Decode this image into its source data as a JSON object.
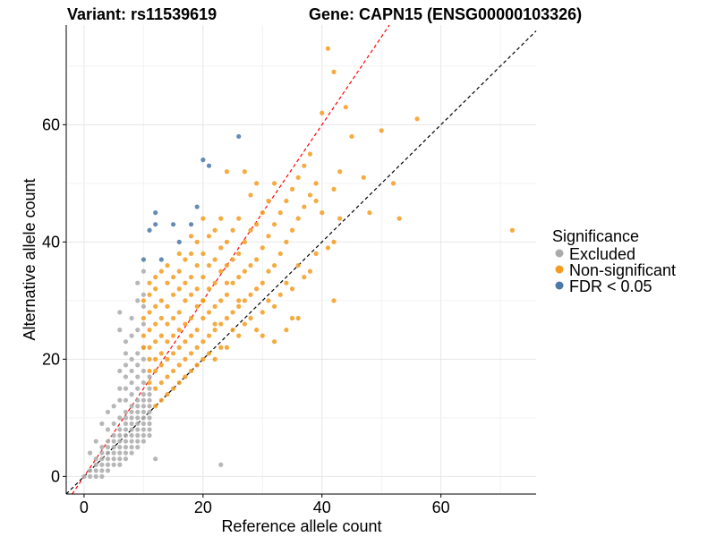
{
  "chart_data": {
    "type": "scatter",
    "title_left": "Variant: rs11539619",
    "title_right": "Gene: CAPN15 (ENSG00000103326)",
    "xlabel": "Reference allele count",
    "ylabel": "Alternative allele count",
    "xlim": [
      -3,
      76
    ],
    "ylim": [
      -3,
      77
    ],
    "xticks": [
      0,
      20,
      40,
      60
    ],
    "yticks": [
      0,
      20,
      40,
      60
    ],
    "grid": true,
    "legend": {
      "title": "Significance",
      "placement": "right",
      "entries": [
        {
          "label": "Excluded",
          "color": "#aaaaaa"
        },
        {
          "label": "Non-significant",
          "color": "#f39c1f"
        },
        {
          "label": "FDR < 0.05",
          "color": "#4a78a8"
        }
      ]
    },
    "reference_lines": [
      {
        "name": "equal-ratio",
        "slope": 1,
        "intercept": 0,
        "color": "#000000",
        "dash": true
      },
      {
        "name": "fitted-ratio",
        "slope": 1.5,
        "intercept": 0,
        "color": "#ff0000",
        "dash": true
      }
    ],
    "series": [
      {
        "name": "Excluded",
        "color": "#aaaaaa",
        "points": [
          [
            0,
            0
          ],
          [
            1,
            0
          ],
          [
            1,
            1
          ],
          [
            2,
            0
          ],
          [
            2,
            1
          ],
          [
            2,
            2
          ],
          [
            2,
            3
          ],
          [
            3,
            0
          ],
          [
            3,
            1
          ],
          [
            3,
            2
          ],
          [
            3,
            3
          ],
          [
            3,
            4
          ],
          [
            3,
            5
          ],
          [
            4,
            1
          ],
          [
            4,
            2
          ],
          [
            4,
            3
          ],
          [
            4,
            4
          ],
          [
            4,
            5
          ],
          [
            4,
            6
          ],
          [
            4,
            8
          ],
          [
            4,
            11
          ],
          [
            5,
            2
          ],
          [
            5,
            3
          ],
          [
            5,
            4
          ],
          [
            5,
            5
          ],
          [
            5,
            6
          ],
          [
            5,
            7
          ],
          [
            5,
            9
          ],
          [
            5,
            12
          ],
          [
            6,
            2
          ],
          [
            6,
            3
          ],
          [
            6,
            4
          ],
          [
            6,
            5
          ],
          [
            6,
            6
          ],
          [
            6,
            7
          ],
          [
            6,
            8
          ],
          [
            6,
            10
          ],
          [
            6,
            13
          ],
          [
            6,
            15
          ],
          [
            7,
            3
          ],
          [
            7,
            4
          ],
          [
            7,
            5
          ],
          [
            7,
            6
          ],
          [
            7,
            7
          ],
          [
            7,
            8
          ],
          [
            7,
            9
          ],
          [
            7,
            10
          ],
          [
            7,
            11
          ],
          [
            7,
            13
          ],
          [
            7,
            15
          ],
          [
            7,
            17
          ],
          [
            7,
            19
          ],
          [
            7,
            21
          ],
          [
            7,
            23
          ],
          [
            8,
            4
          ],
          [
            8,
            5
          ],
          [
            8,
            6
          ],
          [
            8,
            7
          ],
          [
            8,
            8
          ],
          [
            8,
            9
          ],
          [
            8,
            10
          ],
          [
            8,
            11
          ],
          [
            8,
            12
          ],
          [
            8,
            14
          ],
          [
            8,
            16
          ],
          [
            8,
            18
          ],
          [
            8,
            20
          ],
          [
            8,
            24
          ],
          [
            8,
            27
          ],
          [
            9,
            5
          ],
          [
            9,
            6
          ],
          [
            9,
            7
          ],
          [
            9,
            8
          ],
          [
            9,
            9
          ],
          [
            9,
            10
          ],
          [
            9,
            11
          ],
          [
            9,
            12
          ],
          [
            9,
            13
          ],
          [
            9,
            15
          ],
          [
            9,
            17
          ],
          [
            9,
            19
          ],
          [
            9,
            21
          ],
          [
            9,
            25
          ],
          [
            9,
            30
          ],
          [
            9,
            33
          ],
          [
            10,
            6
          ],
          [
            10,
            7
          ],
          [
            10,
            8
          ],
          [
            10,
            9
          ],
          [
            10,
            10
          ],
          [
            10,
            11
          ],
          [
            10,
            12
          ],
          [
            10,
            13
          ],
          [
            10,
            14
          ],
          [
            10,
            16
          ],
          [
            10,
            18
          ],
          [
            10,
            20
          ],
          [
            10,
            22
          ],
          [
            10,
            26
          ],
          [
            10,
            29
          ],
          [
            10,
            31
          ],
          [
            10,
            35
          ],
          [
            11,
            7
          ],
          [
            11,
            8
          ],
          [
            11,
            9
          ],
          [
            11,
            10
          ],
          [
            11,
            11
          ],
          [
            11,
            12
          ],
          [
            11,
            13
          ],
          [
            11,
            14
          ],
          [
            11,
            15
          ],
          [
            11,
            17
          ],
          [
            12,
            3
          ],
          [
            23,
            2
          ],
          [
            6,
            18
          ],
          [
            6,
            25
          ],
          [
            6,
            28
          ],
          [
            3,
            9
          ],
          [
            2,
            6
          ],
          [
            1,
            4
          ]
        ]
      },
      {
        "name": "Non-significant",
        "color": "#f39c1f",
        "points": [
          [
            10,
            22
          ],
          [
            10,
            24
          ],
          [
            10,
            27
          ],
          [
            10,
            30
          ],
          [
            11,
            16
          ],
          [
            11,
            18
          ],
          [
            11,
            20
          ],
          [
            11,
            22
          ],
          [
            11,
            25
          ],
          [
            11,
            28
          ],
          [
            11,
            31
          ],
          [
            11,
            33
          ],
          [
            12,
            12
          ],
          [
            12,
            15
          ],
          [
            12,
            18
          ],
          [
            12,
            20
          ],
          [
            12,
            23
          ],
          [
            12,
            26
          ],
          [
            12,
            29
          ],
          [
            12,
            32
          ],
          [
            12,
            34
          ],
          [
            13,
            13
          ],
          [
            13,
            16
          ],
          [
            13,
            19
          ],
          [
            13,
            21
          ],
          [
            13,
            24
          ],
          [
            13,
            27
          ],
          [
            13,
            30
          ],
          [
            13,
            35
          ],
          [
            14,
            14
          ],
          [
            14,
            17
          ],
          [
            14,
            20
          ],
          [
            14,
            23
          ],
          [
            14,
            26
          ],
          [
            14,
            29
          ],
          [
            14,
            33
          ],
          [
            14,
            36
          ],
          [
            15,
            15
          ],
          [
            15,
            18
          ],
          [
            15,
            21
          ],
          [
            15,
            24
          ],
          [
            15,
            27
          ],
          [
            15,
            31
          ],
          [
            15,
            34
          ],
          [
            16,
            16
          ],
          [
            16,
            19
          ],
          [
            16,
            22
          ],
          [
            16,
            25
          ],
          [
            16,
            28
          ],
          [
            16,
            32
          ],
          [
            16,
            35
          ],
          [
            16,
            38
          ],
          [
            17,
            17
          ],
          [
            17,
            20
          ],
          [
            17,
            23
          ],
          [
            17,
            26
          ],
          [
            17,
            30
          ],
          [
            17,
            33
          ],
          [
            17,
            37
          ],
          [
            18,
            18
          ],
          [
            18,
            21
          ],
          [
            18,
            24
          ],
          [
            18,
            27
          ],
          [
            18,
            31
          ],
          [
            18,
            34
          ],
          [
            18,
            38
          ],
          [
            18,
            41
          ],
          [
            19,
            19
          ],
          [
            19,
            22
          ],
          [
            19,
            25
          ],
          [
            19,
            29
          ],
          [
            19,
            32
          ],
          [
            19,
            36
          ],
          [
            19,
            40
          ],
          [
            20,
            20
          ],
          [
            20,
            23
          ],
          [
            20,
            27
          ],
          [
            20,
            30
          ],
          [
            20,
            34
          ],
          [
            20,
            38
          ],
          [
            20,
            44
          ],
          [
            21,
            21
          ],
          [
            21,
            24
          ],
          [
            21,
            28
          ],
          [
            21,
            32
          ],
          [
            21,
            36
          ],
          [
            21,
            41
          ],
          [
            22,
            20
          ],
          [
            22,
            25
          ],
          [
            22,
            29
          ],
          [
            22,
            33
          ],
          [
            22,
            37
          ],
          [
            22,
            42
          ],
          [
            23,
            22
          ],
          [
            23,
            26
          ],
          [
            23,
            30
          ],
          [
            23,
            35
          ],
          [
            23,
            39
          ],
          [
            23,
            44
          ],
          [
            24,
            22
          ],
          [
            24,
            27
          ],
          [
            24,
            31
          ],
          [
            24,
            36
          ],
          [
            24,
            40
          ],
          [
            24,
            52
          ],
          [
            25,
            25
          ],
          [
            25,
            28
          ],
          [
            25,
            33
          ],
          [
            25,
            37
          ],
          [
            25,
            42
          ],
          [
            26,
            24
          ],
          [
            26,
            29
          ],
          [
            26,
            34
          ],
          [
            26,
            38
          ],
          [
            26,
            44
          ],
          [
            27,
            26
          ],
          [
            27,
            30
          ],
          [
            27,
            35
          ],
          [
            27,
            40
          ],
          [
            27,
            52
          ],
          [
            28,
            27
          ],
          [
            28,
            31
          ],
          [
            28,
            36
          ],
          [
            28,
            42
          ],
          [
            28,
            48
          ],
          [
            29,
            25
          ],
          [
            29,
            32
          ],
          [
            29,
            37
          ],
          [
            29,
            43
          ],
          [
            29,
            50
          ],
          [
            30,
            28
          ],
          [
            30,
            33
          ],
          [
            30,
            39
          ],
          [
            30,
            45
          ],
          [
            31,
            30
          ],
          [
            31,
            35
          ],
          [
            31,
            41
          ],
          [
            31,
            47
          ],
          [
            32,
            29
          ],
          [
            32,
            36
          ],
          [
            32,
            43
          ],
          [
            32,
            50
          ],
          [
            33,
            31
          ],
          [
            33,
            38
          ],
          [
            33,
            45
          ],
          [
            34,
            33
          ],
          [
            34,
            40
          ],
          [
            34,
            47
          ],
          [
            35,
            32
          ],
          [
            35,
            42
          ],
          [
            35,
            49
          ],
          [
            36,
            36
          ],
          [
            36,
            44
          ],
          [
            36,
            51
          ],
          [
            37,
            34
          ],
          [
            37,
            46
          ],
          [
            37,
            53
          ],
          [
            38,
            35
          ],
          [
            38,
            48
          ],
          [
            38,
            55
          ],
          [
            39,
            38
          ],
          [
            39,
            50
          ],
          [
            39,
            47
          ],
          [
            40,
            45
          ],
          [
            40,
            62
          ],
          [
            41,
            73
          ],
          [
            41,
            39
          ],
          [
            42,
            30
          ],
          [
            42,
            40
          ],
          [
            42,
            49
          ],
          [
            42,
            69
          ],
          [
            43,
            44
          ],
          [
            43,
            52
          ],
          [
            44,
            63
          ],
          [
            45,
            58
          ],
          [
            47,
            51
          ],
          [
            48,
            45
          ],
          [
            50,
            59
          ],
          [
            52,
            50
          ],
          [
            53,
            44
          ],
          [
            56,
            61
          ],
          [
            72,
            42
          ],
          [
            30,
            24
          ],
          [
            32,
            23
          ],
          [
            34,
            25
          ],
          [
            36,
            27
          ],
          [
            35,
            27
          ],
          [
            20,
            30
          ],
          [
            22,
            26
          ],
          [
            24,
            33
          ],
          [
            26,
            30
          ]
        ]
      },
      {
        "name": "FDR < 0.05",
        "color": "#4a78a8",
        "points": [
          [
            10,
            37
          ],
          [
            11,
            42
          ],
          [
            12,
            43
          ],
          [
            12,
            45
          ],
          [
            13,
            37
          ],
          [
            15,
            43
          ],
          [
            16,
            40
          ],
          [
            18,
            43
          ],
          [
            19,
            46
          ],
          [
            20,
            54
          ],
          [
            21,
            53
          ],
          [
            26,
            58
          ]
        ]
      }
    ]
  }
}
